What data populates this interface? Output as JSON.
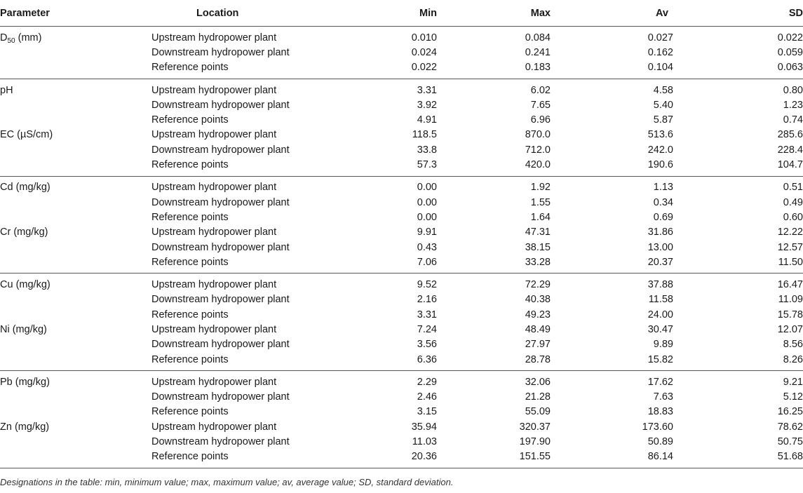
{
  "headers": {
    "parameter": "Parameter",
    "location": "Location",
    "min": "Min",
    "max": "Max",
    "av": "Av",
    "sd": "SD"
  },
  "groups": [
    {
      "rows": [
        {
          "param": "D",
          "param_sub": "50",
          "param_suffix": " (mm)",
          "location": "Upstream hydropower plant",
          "min": "0.010",
          "max": "0.084",
          "av": "0.027",
          "sd": "0.022"
        },
        {
          "param": "",
          "location": "Downstream hydropower plant",
          "min": "0.024",
          "max": "0.241",
          "av": "0.162",
          "sd": "0.059"
        },
        {
          "param": "",
          "location": "Reference points",
          "min": "0.022",
          "max": "0.183",
          "av": "0.104",
          "sd": "0.063"
        }
      ]
    },
    {
      "rows": [
        {
          "param": "pH",
          "location": "Upstream hydropower plant",
          "min": "3.31",
          "max": "6.02",
          "av": "4.58",
          "sd": "0.80"
        },
        {
          "param": "",
          "location": "Downstream hydropower plant",
          "min": "3.92",
          "max": "7.65",
          "av": "5.40",
          "sd": "1.23"
        },
        {
          "param": "",
          "location": "Reference points",
          "min": "4.91",
          "max": "6.96",
          "av": "5.87",
          "sd": "0.74"
        },
        {
          "param": "EC (µS/cm)",
          "location": "Upstream hydropower plant",
          "min": "118.5",
          "max": "870.0",
          "av": "513.6",
          "sd": "285.6"
        },
        {
          "param": "",
          "location": "Downstream hydropower plant",
          "min": "33.8",
          "max": "712.0",
          "av": "242.0",
          "sd": "228.4"
        },
        {
          "param": "",
          "location": "Reference points",
          "min": "57.3",
          "max": "420.0",
          "av": "190.6",
          "sd": "104.7"
        }
      ]
    },
    {
      "rows": [
        {
          "param": "Cd (mg/kg)",
          "location": "Upstream hydropower plant",
          "min": "0.00",
          "max": "1.92",
          "av": "1.13",
          "sd": "0.51"
        },
        {
          "param": "",
          "location": "Downstream hydropower plant",
          "min": "0.00",
          "max": "1.55",
          "av": "0.34",
          "sd": "0.49"
        },
        {
          "param": "",
          "location": "Reference points",
          "min": "0.00",
          "max": "1.64",
          "av": "0.69",
          "sd": "0.60"
        },
        {
          "param": "Cr (mg/kg)",
          "location": "Upstream hydropower plant",
          "min": "9.91",
          "max": "47.31",
          "av": "31.86",
          "sd": "12.22"
        },
        {
          "param": "",
          "location": "Downstream hydropower plant",
          "min": "0.43",
          "max": "38.15",
          "av": "13.00",
          "sd": "12.57"
        },
        {
          "param": "",
          "location": "Reference points",
          "min": "7.06",
          "max": "33.28",
          "av": "20.37",
          "sd": "11.50"
        }
      ]
    },
    {
      "rows": [
        {
          "param": "Cu (mg/kg)",
          "location": "Upstream hydropower plant",
          "min": "9.52",
          "max": "72.29",
          "av": "37.88",
          "sd": "16.47"
        },
        {
          "param": "",
          "location": "Downstream hydropower plant",
          "min": "2.16",
          "max": "40.38",
          "av": "11.58",
          "sd": "11.09"
        },
        {
          "param": "",
          "location": "Reference points",
          "min": "3.31",
          "max": "49.23",
          "av": "24.00",
          "sd": "15.78"
        },
        {
          "param": "Ni (mg/kg)",
          "location": "Upstream hydropower plant",
          "min": "7.24",
          "max": "48.49",
          "av": "30.47",
          "sd": "12.07"
        },
        {
          "param": "",
          "location": "Downstream hydropower plant",
          "min": "3.56",
          "max": "27.97",
          "av": "9.89",
          "sd": "8.56"
        },
        {
          "param": "",
          "location": "Reference points",
          "min": "6.36",
          "max": "28.78",
          "av": "15.82",
          "sd": "8.26"
        }
      ]
    },
    {
      "rows": [
        {
          "param": "Pb (mg/kg)",
          "location": "Upstream hydropower plant",
          "min": "2.29",
          "max": "32.06",
          "av": "17.62",
          "sd": "9.21"
        },
        {
          "param": "",
          "location": "Downstream hydropower plant",
          "min": "2.46",
          "max": "21.28",
          "av": "7.63",
          "sd": "5.12"
        },
        {
          "param": "",
          "location": "Reference points",
          "min": "3.15",
          "max": "55.09",
          "av": "18.83",
          "sd": "16.25"
        },
        {
          "param": "Zn (mg/kg)",
          "location": "Upstream hydropower plant",
          "min": "35.94",
          "max": "320.37",
          "av": "173.60",
          "sd": "78.62"
        },
        {
          "param": "",
          "location": "Downstream hydropower plant",
          "min": "11.03",
          "max": "197.90",
          "av": "50.89",
          "sd": "50.75"
        },
        {
          "param": "",
          "location": "Reference points",
          "min": "20.36",
          "max": "151.55",
          "av": "86.14",
          "sd": "51.68"
        }
      ]
    }
  ],
  "footnote": "Designations in the table: min, minimum value; max, maximum value; av, average value; SD, standard deviation."
}
